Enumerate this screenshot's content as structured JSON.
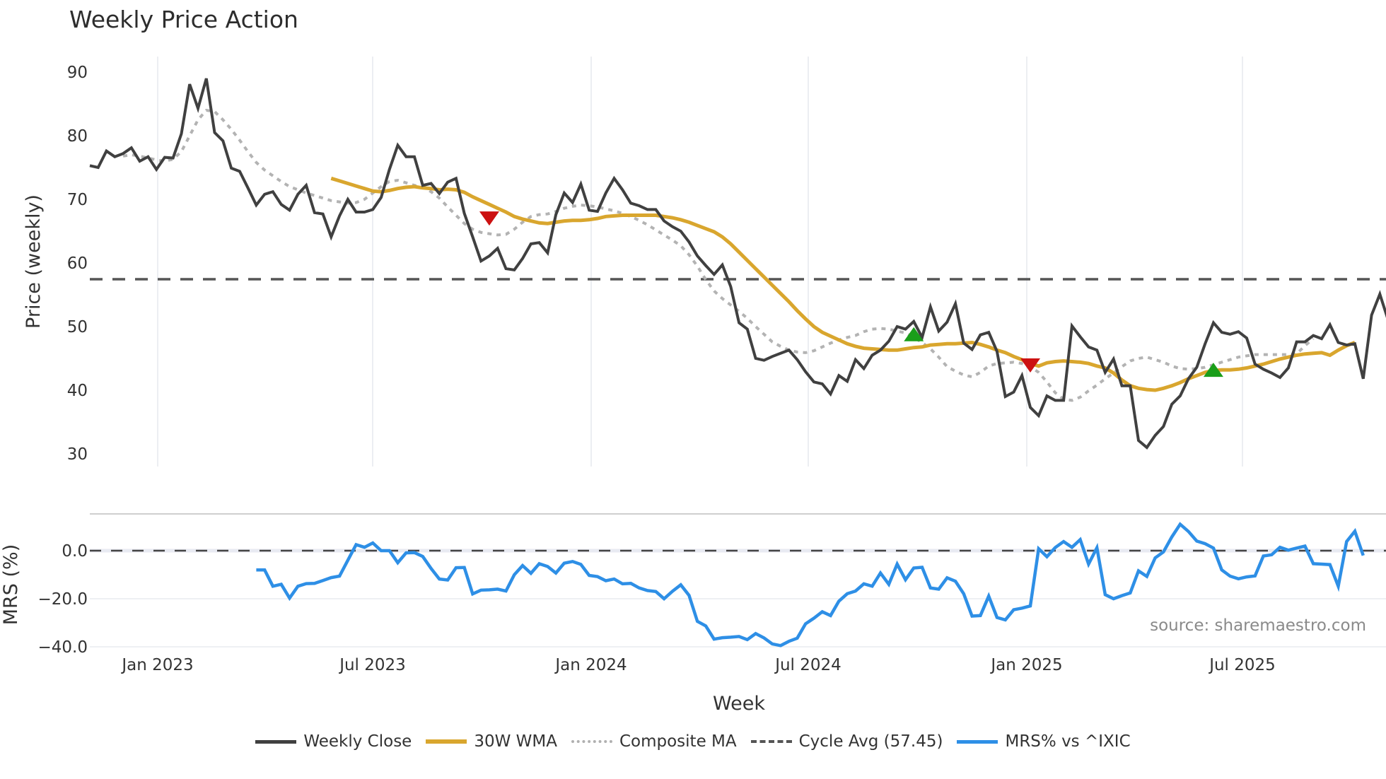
{
  "title": "Weekly Price Action",
  "source_text": "source: sharemaestro.com",
  "legend": [
    {
      "label": "Weekly Close",
      "color": "#404040",
      "style": "solid"
    },
    {
      "label": "30W WMA",
      "color": "#d9a62e",
      "style": "solid"
    },
    {
      "label": "Composite MA",
      "color": "#b0b0b0",
      "style": "dotted"
    },
    {
      "label": "Cycle Avg (57.45)",
      "color": "#555555",
      "style": "dashed"
    },
    {
      "label": "MRS% vs ^IXIC",
      "color": "#2e8fe6",
      "style": "solid"
    }
  ],
  "chart_data": [
    {
      "type": "line",
      "title": "Weekly Price Action",
      "xlabel": "Week",
      "ylabel": "Price (weekly)",
      "ylim": [
        27,
        92
      ],
      "yticks": [
        30,
        40,
        50,
        60,
        70,
        80,
        90
      ],
      "xticks": [
        "Jan 2023",
        "Jul 2023",
        "Jan 2024",
        "Jul 2024",
        "Jan 2025",
        "Jul 2025"
      ],
      "grid": "vertical",
      "cycle_avg": 57.45,
      "start_week_offset": -8,
      "series": [
        {
          "name": "Weekly Close",
          "values": [
            75.3,
            75.0,
            77.6,
            76.7,
            77.2,
            78.1,
            76.0,
            76.7,
            74.7,
            76.6,
            76.5,
            80.3,
            88.1,
            84.3,
            89.0,
            80.5,
            79.2,
            74.9,
            74.4,
            71.8,
            69.1,
            70.8,
            71.2,
            69.2,
            68.3,
            70.8,
            72.2,
            67.9,
            67.7,
            64.1,
            67.4,
            70.0,
            68.0,
            68.0,
            68.4,
            70.3,
            74.7,
            78.5,
            76.7,
            76.7,
            72.2,
            72.5,
            70.9,
            72.7,
            73.3,
            67.8,
            64.1,
            60.3,
            61.1,
            62.3,
            59.1,
            58.9,
            60.7,
            63.0,
            63.2,
            61.6,
            67.6,
            71.0,
            69.5,
            72.4,
            68.3,
            68.1,
            71.0,
            73.3,
            71.5,
            69.4,
            69.0,
            68.4,
            68.4,
            66.6,
            65.7,
            65.0,
            63.3,
            61.1,
            59.6,
            58.2,
            59.7,
            56.3,
            50.6,
            49.6,
            45.0,
            44.7,
            45.3,
            45.8,
            46.3,
            44.8,
            42.9,
            41.3,
            41.0,
            39.4,
            42.3,
            41.4,
            44.8,
            43.4,
            45.5,
            46.3,
            47.7,
            50.0,
            49.6,
            50.8,
            48.3,
            53.1,
            49.3,
            50.7,
            53.6,
            47.4,
            46.4,
            48.7,
            49.1,
            46.1,
            39.0,
            39.7,
            42.3,
            37.3,
            36.0,
            39.1,
            38.4,
            38.4,
            50.1,
            48.4,
            46.8,
            46.3,
            42.8,
            44.9,
            40.7,
            40.7,
            32.1,
            31.0,
            32.9,
            34.3,
            37.8,
            39.1,
            41.8,
            43.6,
            47.3,
            50.6,
            49.1,
            48.8,
            49.2,
            48.2,
            44.1,
            43.3,
            42.7,
            42.0,
            43.5,
            47.6,
            47.6,
            48.6,
            48.1,
            50.3,
            47.5,
            47.1,
            47.3,
            41.8,
            51.8,
            55.1,
            51.0
          ]
        },
        {
          "name": "30W WMA",
          "start_index": 29,
          "values": [
            73.3,
            72.9,
            72.5,
            72.1,
            71.7,
            71.3,
            71.2,
            71.4,
            71.7,
            71.9,
            72.0,
            71.8,
            71.7,
            71.5,
            71.6,
            71.5,
            71.1,
            70.4,
            69.8,
            69.2,
            68.6,
            68.0,
            67.3,
            66.9,
            66.6,
            66.3,
            66.2,
            66.4,
            66.6,
            66.7,
            66.7,
            66.8,
            67.0,
            67.3,
            67.4,
            67.5,
            67.5,
            67.5,
            67.5,
            67.5,
            67.3,
            67.1,
            66.8,
            66.4,
            65.9,
            65.4,
            64.9,
            64.1,
            63.0,
            61.7,
            60.4,
            59.1,
            57.8,
            56.5,
            55.2,
            53.9,
            52.5,
            51.2,
            50.0,
            49.1,
            48.5,
            47.9,
            47.3,
            46.9,
            46.6,
            46.5,
            46.4,
            46.3,
            46.3,
            46.5,
            46.7,
            46.8,
            47.1,
            47.2,
            47.3,
            47.3,
            47.4,
            47.5,
            47.2,
            46.8,
            46.3,
            45.9,
            45.3,
            44.8,
            44.2,
            43.8,
            44.3,
            44.5,
            44.6,
            44.5,
            44.4,
            44.2,
            43.8,
            43.5,
            42.7,
            41.6,
            40.7,
            40.3,
            40.1,
            40.0,
            40.3,
            40.7,
            41.2,
            41.8,
            42.3,
            42.8,
            43.1,
            43.2,
            43.2,
            43.3,
            43.5,
            43.8,
            44.1,
            44.5,
            44.9,
            45.2,
            45.5,
            45.7,
            45.8,
            45.9,
            45.5,
            46.3,
            47.0,
            47.5
          ]
        },
        {
          "name": "Composite MA",
          "start_index": 4,
          "values": [
            76.8,
            77.0,
            76.8,
            76.5,
            76.2,
            76.0,
            76.3,
            77.5,
            80.0,
            82.5,
            84.0,
            83.8,
            82.5,
            81.0,
            79.3,
            77.5,
            75.8,
            74.6,
            73.7,
            72.8,
            72.0,
            71.5,
            71.0,
            70.6,
            70.2,
            69.8,
            69.6,
            69.4,
            69.5,
            70.0,
            71.0,
            72.0,
            72.8,
            73.0,
            72.6,
            72.2,
            71.9,
            71.2,
            70.2,
            68.8,
            67.5,
            66.2,
            65.3,
            64.8,
            64.6,
            64.4,
            64.5,
            65.3,
            66.4,
            67.3,
            67.6,
            67.7,
            68.1,
            68.6,
            68.9,
            69.1,
            69.0,
            68.8,
            68.5,
            68.2,
            67.8,
            67.3,
            66.7,
            66.0,
            65.2,
            64.4,
            63.6,
            62.7,
            61.3,
            59.5,
            57.4,
            55.6,
            54.4,
            53.4,
            52.4,
            51.3,
            50.0,
            48.8,
            47.6,
            46.9,
            46.3,
            46.0,
            45.9,
            46.2,
            46.8,
            47.4,
            47.9,
            48.3,
            48.6,
            49.2,
            49.6,
            49.7,
            49.6,
            49.3,
            49.0,
            48.3,
            47.5,
            46.5,
            45.2,
            43.7,
            43.0,
            42.4,
            42.1,
            42.8,
            43.8,
            44.2,
            44.3,
            44.4,
            44.2,
            43.7,
            42.8,
            41.3,
            39.6,
            38.6,
            38.4,
            38.9,
            39.9,
            40.8,
            41.8,
            42.7,
            43.7,
            44.6,
            45.0,
            45.2,
            44.8,
            44.4,
            43.8,
            43.4,
            43.3,
            43.4,
            43.6,
            44.0,
            44.4,
            44.8,
            45.2,
            45.4,
            45.6,
            45.6,
            45.6,
            45.6,
            45.6,
            45.7,
            47.0,
            48.1
          ]
        },
        {
          "name": "Cycle Avg (57.45)",
          "values": [
            57.45
          ]
        }
      ],
      "markers": [
        {
          "type": "sell",
          "shape": "triangle-down",
          "color": "#cc1111",
          "x_index": 48,
          "value": 67.1
        },
        {
          "type": "buy",
          "shape": "triangle-up",
          "color": "#1a9e1a",
          "x_index": 99,
          "value": 48.7
        },
        {
          "type": "sell",
          "shape": "triangle-down",
          "color": "#cc1111",
          "x_index": 113,
          "value": 44.0
        },
        {
          "type": "buy",
          "shape": "triangle-up",
          "color": "#1a9e1a",
          "x_index": 135,
          "value": 43.1
        }
      ]
    },
    {
      "type": "line",
      "xlabel": "Week",
      "ylabel": "MRS (%)",
      "ylim": [
        -41,
        12
      ],
      "yticks": [
        "0.0",
        "−20.0",
        "−40.0"
      ],
      "ytick_values": [
        0,
        -20,
        -40
      ],
      "reference_line": 0,
      "series": [
        {
          "name": "MRS% vs ^IXIC",
          "start_index": 20,
          "values": [
            -8.0,
            -8.0,
            -14.8,
            -14.0,
            -19.7,
            -14.8,
            -13.7,
            -13.6,
            -12.4,
            -11.2,
            -10.6,
            -4.0,
            2.5,
            1.4,
            3.2,
            0.0,
            0.0,
            -5.0,
            -0.9,
            -0.8,
            -2.4,
            -7.4,
            -11.8,
            -12.2,
            -7.1,
            -7.0,
            -18.0,
            -16.4,
            -16.3,
            -16.0,
            -16.8,
            -10.0,
            -6.2,
            -9.4,
            -5.4,
            -6.6,
            -9.3,
            -5.2,
            -4.5,
            -5.7,
            -10.3,
            -10.8,
            -12.5,
            -11.8,
            -13.8,
            -13.6,
            -15.5,
            -16.6,
            -17.0,
            -20.0,
            -16.9,
            -14.2,
            -18.6,
            -29.4,
            -31.3,
            -36.8,
            -36.2,
            -36.0,
            -35.7,
            -37.0,
            -34.5,
            -36.3,
            -38.8,
            -39.5,
            -37.7,
            -36.4,
            -30.4,
            -28.1,
            -25.4,
            -27.0,
            -21.0,
            -17.9,
            -16.8,
            -13.8,
            -14.8,
            -9.3,
            -14.0,
            -5.6,
            -12.1,
            -7.2,
            -6.9,
            -15.5,
            -16.0,
            -11.3,
            -12.7,
            -17.9,
            -27.2,
            -27.0,
            -18.9,
            -27.8,
            -28.8,
            -24.6,
            -23.9,
            -23.0,
            0.8,
            -2.5,
            1.3,
            3.8,
            1.4,
            4.6,
            -5.6,
            1.2,
            -18.3,
            -20.0,
            -18.7,
            -17.6,
            -8.4,
            -10.7,
            -3.0,
            -0.5,
            5.7,
            11.0,
            8.0,
            4.0,
            2.9,
            1.1,
            -8.0,
            -10.6,
            -11.7,
            -10.9,
            -10.5,
            -2.2,
            -1.7,
            1.4,
            0.2,
            1.1,
            1.9,
            -5.4,
            -5.6,
            -5.8,
            -14.8,
            3.8,
            8.1,
            -2.0
          ]
        }
      ]
    }
  ]
}
